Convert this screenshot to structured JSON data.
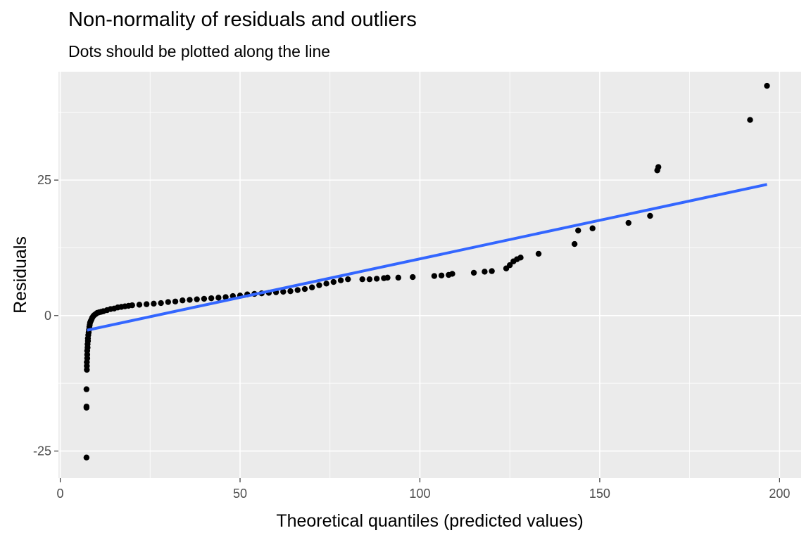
{
  "chart_data": {
    "type": "scatter",
    "title": "Non-normality of residuals and outliers",
    "subtitle": "Dots should be plotted along the line",
    "xlabel": "Theoretical quantiles (predicted values)",
    "ylabel": "Residuals",
    "xlim": [
      -0.5,
      206
    ],
    "ylim": [
      -30,
      45
    ],
    "x_ticks": [
      0,
      50,
      100,
      150,
      200
    ],
    "y_ticks": [
      -25,
      0,
      25
    ],
    "x_tick_labels": [
      "0",
      "50",
      "100",
      "150",
      "200"
    ],
    "y_tick_labels": [
      "-25",
      "0",
      "25"
    ],
    "grid": true,
    "legend": "none",
    "colors": {
      "panel_bg": "#ebebeb",
      "grid": "#ffffff",
      "points": "#000000",
      "line": "#3366ff"
    },
    "series": [
      {
        "kind": "points",
        "x": [
          7.3,
          7.3,
          7.3,
          7.3,
          7.4,
          7.4,
          7.4,
          7.5,
          7.5,
          7.5,
          7.6,
          7.6,
          7.7,
          7.7,
          7.8,
          7.9,
          8.0,
          8.1,
          8.2,
          8.3,
          8.5,
          8.7,
          8.9,
          9.2,
          9.5,
          9.9,
          10.3,
          10.8,
          11.4,
          12.0,
          13,
          14,
          15,
          16,
          17,
          18,
          19,
          20,
          22,
          24,
          26,
          28,
          30,
          32,
          34,
          36,
          38,
          40,
          42,
          44,
          46,
          48,
          50,
          52,
          54,
          56,
          58,
          60,
          62,
          64,
          66,
          68,
          70,
          72,
          74,
          76,
          78,
          80,
          84,
          86,
          88,
          90,
          91,
          94,
          98,
          104,
          106,
          108,
          109,
          115,
          118,
          120,
          124,
          125,
          126,
          127,
          128,
          133,
          143,
          144,
          148,
          158,
          164,
          166,
          166.3,
          191.8,
          196.5
        ],
        "y": [
          -26.2,
          -17.0,
          -16.8,
          -13.6,
          -10.0,
          -9.3,
          -8.6,
          -7.9,
          -7.2,
          -6.5,
          -5.9,
          -5.3,
          -4.7,
          -4.2,
          -3.6,
          -3.1,
          -2.6,
          -2.1,
          -1.7,
          -1.3,
          -1.0,
          -0.7,
          -0.4,
          -0.1,
          0.1,
          0.3,
          0.5,
          0.6,
          0.7,
          0.8,
          1.0,
          1.2,
          1.3,
          1.5,
          1.6,
          1.7,
          1.8,
          1.9,
          2.0,
          2.1,
          2.2,
          2.3,
          2.5,
          2.6,
          2.8,
          2.9,
          3.0,
          3.1,
          3.2,
          3.3,
          3.4,
          3.6,
          3.7,
          3.9,
          4.0,
          4.1,
          4.2,
          4.3,
          4.4,
          4.5,
          4.7,
          4.9,
          5.2,
          5.6,
          5.9,
          6.2,
          6.5,
          6.7,
          6.7,
          6.7,
          6.8,
          6.9,
          7.0,
          7.0,
          7.1,
          7.3,
          7.4,
          7.5,
          7.7,
          7.9,
          8.1,
          8.2,
          8.7,
          9.3,
          10.0,
          10.4,
          10.7,
          11.4,
          13.2,
          15.7,
          16.1,
          17.1,
          18.4,
          26.8,
          27.4,
          36.1,
          42.4
        ]
      },
      {
        "kind": "line",
        "x": [
          7.5,
          196.5
        ],
        "y": [
          -2.7,
          24.2
        ]
      }
    ]
  }
}
